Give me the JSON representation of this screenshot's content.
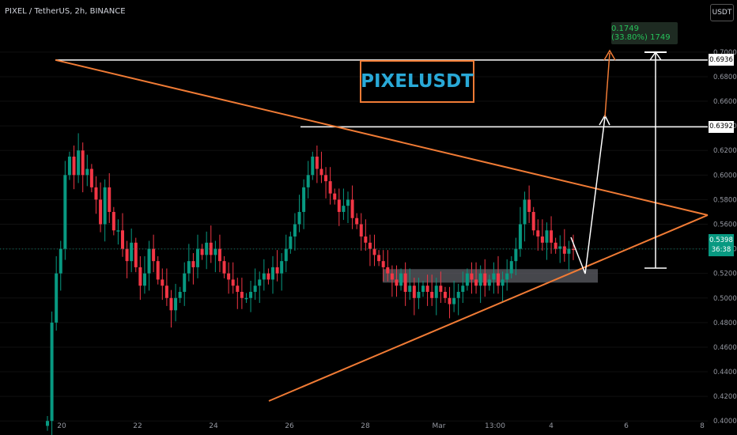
{
  "header": {
    "title": "PIXEL / TetherUS, 2h, BINANCE",
    "currency": "USDT"
  },
  "banner": {
    "text": "PIXELUSDT"
  },
  "measure": {
    "label": "0.1749 (33.80%) 1749"
  },
  "price_tags": {
    "top_level": "0.6936",
    "mid_level": "0.6392",
    "last_price": "0.5398",
    "countdown": "36:38"
  },
  "colors": {
    "up": "#089981",
    "down": "#f23645",
    "triangle": "#f07b35",
    "levels": "#ffffff",
    "zone": "#5d5f66"
  },
  "chart_data": {
    "type": "candlestick",
    "x_ticks": [
      "20",
      "22",
      "24",
      "26",
      "28",
      "Mar",
      "13:00",
      "4",
      "6",
      "8"
    ],
    "y_ticks": [
      0.4,
      0.42,
      0.44,
      0.46,
      0.48,
      0.5,
      0.52,
      0.54,
      0.56,
      0.58,
      0.6,
      0.62,
      0.64,
      0.66,
      0.68,
      0.7
    ],
    "y_tick_labels": [
      "0.4000",
      "0.4200",
      "0.4400",
      "0.4600",
      "0.4800",
      "0.5000",
      "0.5200",
      "0.5400",
      "0.5600",
      "0.5800",
      "0.6000",
      "0.6200",
      "0.6400",
      "0.6600",
      "0.6800",
      "0.7000"
    ],
    "ylim": [
      0.3995,
      0.7115
    ],
    "horizontal_levels": [
      0.6936,
      0.6392
    ],
    "demand_zone": [
      0.5125,
      0.5235
    ],
    "last_price": 0.5398,
    "closes": [
      0.4,
      0.48,
      0.52,
      0.54,
      0.6,
      0.615,
      0.6,
      0.62,
      0.6,
      0.605,
      0.59,
      0.58,
      0.56,
      0.59,
      0.57,
      0.555,
      0.555,
      0.54,
      0.53,
      0.545,
      0.525,
      0.51,
      0.52,
      0.54,
      0.53,
      0.515,
      0.51,
      0.5,
      0.49,
      0.5,
      0.505,
      0.52,
      0.53,
      0.525,
      0.54,
      0.535,
      0.545,
      0.535,
      0.54,
      0.53,
      0.52,
      0.515,
      0.51,
      0.505,
      0.5,
      0.5,
      0.505,
      0.51,
      0.515,
      0.52,
      0.515,
      0.525,
      0.52,
      0.53,
      0.54,
      0.55,
      0.56,
      0.57,
      0.59,
      0.6,
      0.615,
      0.605,
      0.6,
      0.595,
      0.585,
      0.58,
      0.57,
      0.575,
      0.58,
      0.565,
      0.56,
      0.55,
      0.545,
      0.54,
      0.535,
      0.53,
      0.525,
      0.52,
      0.515,
      0.51,
      0.52,
      0.505,
      0.51,
      0.5,
      0.505,
      0.51,
      0.505,
      0.5,
      0.51,
      0.505,
      0.5,
      0.495,
      0.5,
      0.505,
      0.51,
      0.52,
      0.515,
      0.51,
      0.52,
      0.51,
      0.515,
      0.52,
      0.51,
      0.515,
      0.52,
      0.53,
      0.54,
      0.56,
      0.58,
      0.57,
      0.555,
      0.55,
      0.545,
      0.555,
      0.545,
      0.54,
      0.542,
      0.536,
      0.54,
      0.5398
    ]
  }
}
